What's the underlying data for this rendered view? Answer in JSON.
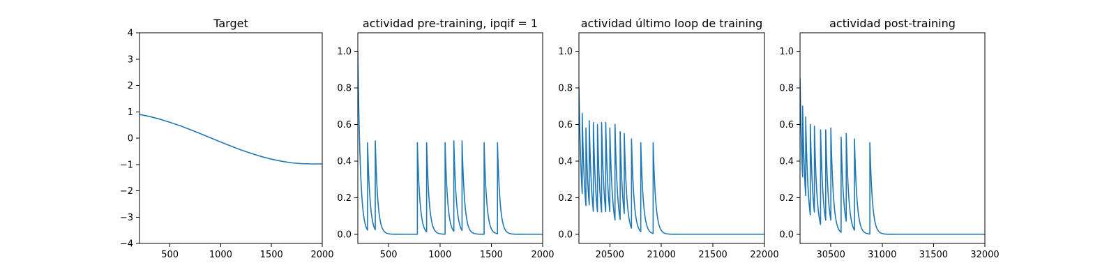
{
  "chart_data": [
    {
      "type": "line",
      "title": "Target",
      "xlabel": "",
      "ylabel": "",
      "xlim": [
        200,
        2000
      ],
      "ylim": [
        -4,
        4
      ],
      "xticks": [
        500,
        1000,
        1500,
        2000
      ],
      "xtick_labels": [
        "500",
        "1000",
        "1500",
        "2000"
      ],
      "yticks": [
        -4,
        -3,
        -2,
        -1,
        0,
        1,
        2,
        3,
        4
      ],
      "ytick_labels": [
        "−4",
        "−3",
        "−2",
        "−1",
        "0",
        "1",
        "2",
        "3",
        "4"
      ],
      "grid": false,
      "series": [
        {
          "color": "#1f77b4",
          "x": [
            200,
            300,
            400,
            500,
            600,
            700,
            800,
            900,
            1000,
            1100,
            1200,
            1300,
            1400,
            1500,
            1600,
            1700,
            1800,
            1900,
            2000
          ],
          "y": [
            0.9,
            0.82,
            0.72,
            0.6,
            0.47,
            0.32,
            0.17,
            0.01,
            -0.15,
            -0.3,
            -0.45,
            -0.58,
            -0.7,
            -0.8,
            -0.88,
            -0.94,
            -0.97,
            -0.98,
            -0.98
          ]
        }
      ]
    },
    {
      "type": "line",
      "title": "actividad pre-training, ipqif = 1",
      "xlabel": "",
      "ylabel": "",
      "xlim": [
        200,
        2000
      ],
      "ylim": [
        -0.05,
        1.1
      ],
      "xticks": [
        500,
        1000,
        1500,
        2000
      ],
      "xtick_labels": [
        "500",
        "1000",
        "1500",
        "2000"
      ],
      "yticks": [
        0.0,
        0.2,
        0.4,
        0.6,
        0.8,
        1.0
      ],
      "ytick_labels": [
        "0.0",
        "0.2",
        "0.4",
        "0.6",
        "0.8",
        "1.0"
      ],
      "grid": false,
      "series": [
        {
          "color": "#1f77b4",
          "start": 1.0,
          "decay": 25,
          "spikes": [
            [
              295,
              0.5
            ],
            [
              370,
              0.51
            ],
            [
              780,
              0.5
            ],
            [
              870,
              0.5
            ],
            [
              1050,
              0.5
            ],
            [
              1135,
              0.51
            ],
            [
              1215,
              0.51
            ],
            [
              1430,
              0.5
            ],
            [
              1560,
              0.5
            ]
          ]
        }
      ]
    },
    {
      "type": "line",
      "title": "actividad último loop de training",
      "xlabel": "",
      "ylabel": "",
      "xlim": [
        20200,
        22000
      ],
      "ylim": [
        -0.05,
        1.1
      ],
      "xticks": [
        20500,
        21000,
        21500,
        22000
      ],
      "xtick_labels": [
        "20500",
        "21000",
        "21500",
        "22000"
      ],
      "yticks": [
        0.0,
        0.2,
        0.4,
        0.6,
        0.8,
        1.0
      ],
      "ytick_labels": [
        "0.0",
        "0.2",
        "0.4",
        "0.6",
        "0.8",
        "1.0"
      ],
      "grid": false,
      "series": [
        {
          "color": "#1f77b4",
          "start": 0.8,
          "decay": 25,
          "spikes": [
            [
              20232,
              0.66
            ],
            [
              20268,
              0.58
            ],
            [
              20300,
              0.62
            ],
            [
              20340,
              0.61
            ],
            [
              20380,
              0.6
            ],
            [
              20420,
              0.61
            ],
            [
              20460,
              0.61
            ],
            [
              20500,
              0.58
            ],
            [
              20550,
              0.6
            ],
            [
              20600,
              0.56
            ],
            [
              20640,
              0.55
            ],
            [
              20710,
              0.52
            ],
            [
              20800,
              0.5
            ],
            [
              20920,
              0.5
            ]
          ]
        }
      ]
    },
    {
      "type": "line",
      "title": "actividad post-training",
      "xlabel": "",
      "ylabel": "",
      "xlim": [
        30200,
        32000
      ],
      "ylim": [
        -0.05,
        1.1
      ],
      "xticks": [
        30500,
        31000,
        31500,
        32000
      ],
      "xtick_labels": [
        "30500",
        "31000",
        "31500",
        "32000"
      ],
      "yticks": [
        0.0,
        0.2,
        0.4,
        0.6,
        0.8,
        1.0
      ],
      "ytick_labels": [
        "0.0",
        "0.2",
        "0.4",
        "0.6",
        "0.8",
        "1.0"
      ],
      "grid": false,
      "series": [
        {
          "color": "#1f77b4",
          "start": 0.85,
          "decay": 25,
          "spikes": [
            [
              30225,
              0.7
            ],
            [
              30255,
              0.64
            ],
            [
              30300,
              0.6
            ],
            [
              30340,
              0.59
            ],
            [
              30400,
              0.57
            ],
            [
              30450,
              0.57
            ],
            [
              30500,
              0.58
            ],
            [
              30600,
              0.53
            ],
            [
              30650,
              0.55
            ],
            [
              30730,
              0.52
            ],
            [
              30880,
              0.5
            ]
          ]
        }
      ]
    }
  ]
}
